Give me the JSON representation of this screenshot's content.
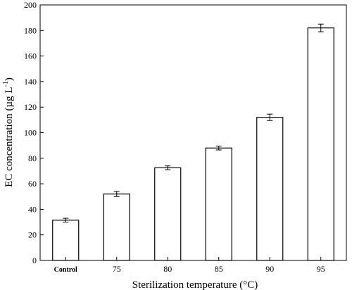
{
  "chart_data": {
    "type": "bar",
    "categories": [
      "Control",
      "75",
      "80",
      "85",
      "90",
      "95"
    ],
    "values": [
      31.5,
      52,
      72.5,
      88,
      112,
      182
    ],
    "errors": [
      1.5,
      2,
      1.5,
      1.5,
      2.5,
      3
    ],
    "xlabel": "Sterilization temperature (°C)",
    "ylabel": "EC concentration (µg L",
    "ylabel_superscript": "-1",
    "ylabel_suffix": ")",
    "ylim": [
      0,
      200
    ],
    "yticks": [
      0,
      20,
      40,
      60,
      80,
      100,
      120,
      140,
      160,
      180,
      200
    ],
    "grid": false,
    "bar_fill": "#ffffff",
    "bar_stroke": "#000000"
  }
}
